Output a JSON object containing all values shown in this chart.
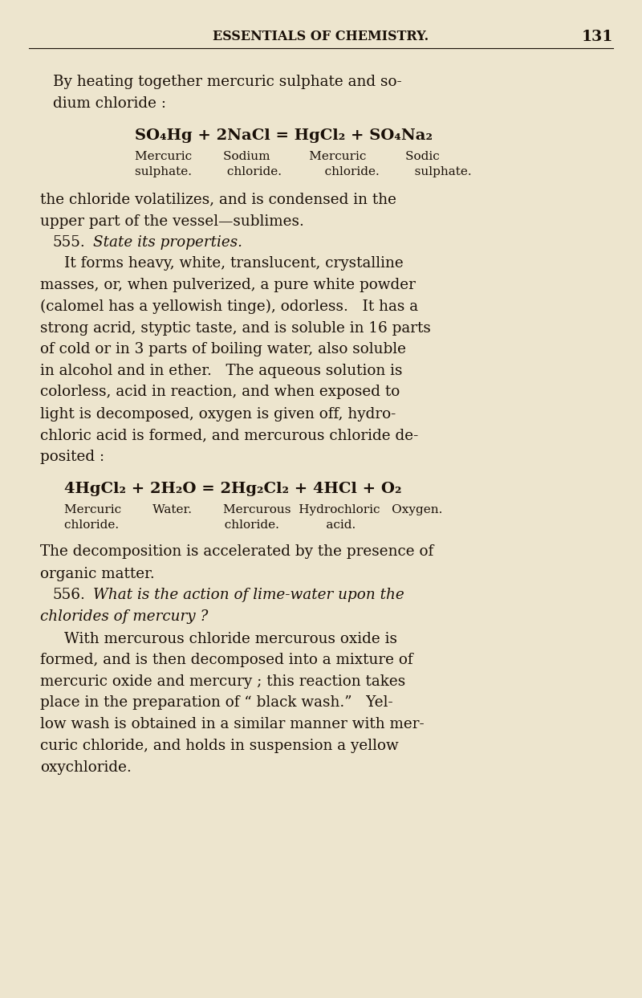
{
  "bg_color": "#ede5ce",
  "text_color": "#1a1008",
  "fig_width": 8.0,
  "fig_height": 12.43,
  "dpi": 100,
  "header_text": "ESSENTIALS OF CHEMISTRY.",
  "page_num": "131",
  "lines": [
    {
      "text": "By heating together mercuric sulphate and so-",
      "xn": 0.082,
      "yn": 0.918,
      "size": 13.2,
      "style": "normal"
    },
    {
      "text": "dium chloride :",
      "xn": 0.082,
      "yn": 0.896,
      "size": 13.2,
      "style": "normal"
    },
    {
      "text": "SO₄Hg + 2NaCl = HgCl₂ + SO₄Na₂",
      "xn": 0.21,
      "yn": 0.864,
      "size": 14.0,
      "style": "bold"
    },
    {
      "text": "Mercuric        Sodium          Mercuric          Sodic",
      "xn": 0.21,
      "yn": 0.843,
      "size": 11.0,
      "style": "normal"
    },
    {
      "text": "sulphate.         chloride.           chloride.         sulphate.",
      "xn": 0.21,
      "yn": 0.828,
      "size": 11.0,
      "style": "normal"
    },
    {
      "text": "the chloride volatilizes, and is condensed in the",
      "xn": 0.063,
      "yn": 0.8,
      "size": 13.2,
      "style": "normal"
    },
    {
      "text": "upper part of the vessel—sublimes.",
      "xn": 0.063,
      "yn": 0.778,
      "size": 13.2,
      "style": "normal"
    },
    {
      "text": "555.",
      "xn": 0.082,
      "yn": 0.757,
      "size": 13.2,
      "style": "normal"
    },
    {
      "text": "State its properties.",
      "xn": 0.145,
      "yn": 0.757,
      "size": 13.2,
      "style": "italic"
    },
    {
      "text": "It forms heavy, white, translucent, crystalline",
      "xn": 0.1,
      "yn": 0.736,
      "size": 13.2,
      "style": "normal"
    },
    {
      "text": "masses, or, when pulverized, a pure white powder",
      "xn": 0.063,
      "yn": 0.714,
      "size": 13.2,
      "style": "normal"
    },
    {
      "text": "(calomel has a yellowish tinge), odorless.   It has a",
      "xn": 0.063,
      "yn": 0.693,
      "size": 13.2,
      "style": "normal"
    },
    {
      "text": "strong acrid, styptic taste, and is soluble in 16 parts",
      "xn": 0.063,
      "yn": 0.671,
      "size": 13.2,
      "style": "normal"
    },
    {
      "text": "of cold or in 3 parts of boiling water, also soluble",
      "xn": 0.063,
      "yn": 0.65,
      "size": 13.2,
      "style": "normal"
    },
    {
      "text": "in alcohol and in ether.   The aqueous solution is",
      "xn": 0.063,
      "yn": 0.628,
      "size": 13.2,
      "style": "normal"
    },
    {
      "text": "colorless, acid in reaction, and when exposed to",
      "xn": 0.063,
      "yn": 0.607,
      "size": 13.2,
      "style": "normal"
    },
    {
      "text": "light is decomposed, oxygen is given off, hydro-",
      "xn": 0.063,
      "yn": 0.585,
      "size": 13.2,
      "style": "normal"
    },
    {
      "text": "chloric acid is formed, and mercurous chloride de-",
      "xn": 0.063,
      "yn": 0.564,
      "size": 13.2,
      "style": "normal"
    },
    {
      "text": "posited :",
      "xn": 0.063,
      "yn": 0.542,
      "size": 13.2,
      "style": "normal"
    },
    {
      "text": "4HgCl₂ + 2H₂O = 2Hg₂Cl₂ + 4HCl + O₂",
      "xn": 0.1,
      "yn": 0.51,
      "size": 14.0,
      "style": "bold"
    },
    {
      "text": "Mercuric        Water.        Mercurous  Hydrochloric   Oxygen.",
      "xn": 0.1,
      "yn": 0.489,
      "size": 11.0,
      "style": "normal"
    },
    {
      "text": "chloride.                           chloride.            acid.",
      "xn": 0.1,
      "yn": 0.474,
      "size": 11.0,
      "style": "normal"
    },
    {
      "text": "The decomposition is accelerated by the presence of",
      "xn": 0.063,
      "yn": 0.447,
      "size": 13.2,
      "style": "normal"
    },
    {
      "text": "organic matter.",
      "xn": 0.063,
      "yn": 0.425,
      "size": 13.2,
      "style": "normal"
    },
    {
      "text": "556.",
      "xn": 0.082,
      "yn": 0.404,
      "size": 13.2,
      "style": "normal"
    },
    {
      "text": "What is the action of lime-water upon the",
      "xn": 0.145,
      "yn": 0.404,
      "size": 13.2,
      "style": "italic"
    },
    {
      "text": "chlorides of mercury ?",
      "xn": 0.063,
      "yn": 0.382,
      "size": 13.2,
      "style": "italic"
    },
    {
      "text": "With mercurous chloride mercurous oxide is",
      "xn": 0.1,
      "yn": 0.36,
      "size": 13.2,
      "style": "normal"
    },
    {
      "text": "formed, and is then decomposed into a mixture of",
      "xn": 0.063,
      "yn": 0.339,
      "size": 13.2,
      "style": "normal"
    },
    {
      "text": "mercuric oxide and mercury ; this reaction takes",
      "xn": 0.063,
      "yn": 0.317,
      "size": 13.2,
      "style": "normal"
    },
    {
      "text": "place in the preparation of “ black wash.”   Yel-",
      "xn": 0.063,
      "yn": 0.296,
      "size": 13.2,
      "style": "normal"
    },
    {
      "text": "low wash is obtained in a similar manner with mer-",
      "xn": 0.063,
      "yn": 0.274,
      "size": 13.2,
      "style": "normal"
    },
    {
      "text": "curic chloride, and holds in suspension a yellow",
      "xn": 0.063,
      "yn": 0.253,
      "size": 13.2,
      "style": "normal"
    },
    {
      "text": "oxychloride.",
      "xn": 0.063,
      "yn": 0.231,
      "size": 13.2,
      "style": "normal"
    }
  ]
}
